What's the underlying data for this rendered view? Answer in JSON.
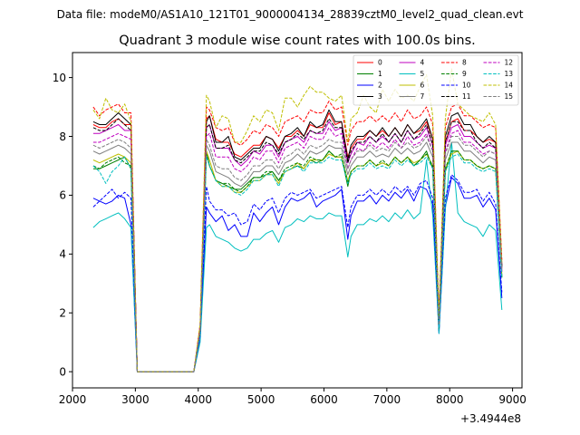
{
  "suptitle": "Data file: modeM0/AS1A10_121T01_9000004134_28839cztM0_level2_quad_clean.evt",
  "chart_data": {
    "type": "line",
    "title": "Quadrant 3 module wise count rates with 100.0s bins.",
    "xlabel": "",
    "ylabel": "",
    "offset_label": "+3.4944e8",
    "xlim": [
      2000,
      9150
    ],
    "ylim": [
      -0.55,
      10.85
    ],
    "xticks": [
      2000,
      3000,
      4000,
      5000,
      6000,
      7000,
      8000,
      9000
    ],
    "xtick_labels": [
      "2000",
      "3000",
      "4000",
      "5000",
      "6000",
      "7000",
      "8000",
      "9000"
    ],
    "yticks": [
      0,
      2,
      4,
      6,
      8,
      10
    ],
    "ytick_labels": [
      "0",
      "2",
      "4",
      "6",
      "8",
      "10"
    ],
    "grid": false,
    "legend_position": "top-right",
    "legend_columns": 4,
    "x": [
      2330,
      2430,
      2530,
      2630,
      2730,
      2830,
      2930,
      3030,
      3130,
      3230,
      3330,
      3430,
      3530,
      3630,
      3730,
      3830,
      3930,
      4030,
      4130,
      4180,
      4280,
      4380,
      4480,
      4580,
      4680,
      4780,
      4880,
      4980,
      5080,
      5180,
      5280,
      5380,
      5480,
      5580,
      5680,
      5780,
      5880,
      5980,
      6080,
      6180,
      6280,
      6380,
      6430,
      6530,
      6630,
      6730,
      6830,
      6930,
      7030,
      7130,
      7230,
      7330,
      7430,
      7530,
      7630,
      7730,
      7830,
      7930,
      8030,
      8130,
      8230,
      8330,
      8430,
      8530,
      8630,
      8730,
      8830
    ],
    "series": [
      {
        "name": "0",
        "color": "#ff0000",
        "dash": "solid",
        "values": [
          8.4,
          8.3,
          8.3,
          8.5,
          8.6,
          8.4,
          8.4,
          0,
          0,
          0,
          0,
          0,
          0,
          0,
          0,
          0,
          0,
          1.4,
          8.6,
          8.7,
          7.9,
          7.8,
          7.8,
          7.4,
          7.3,
          7.5,
          7.7,
          7.7,
          8.0,
          7.9,
          7.6,
          8.0,
          8.0,
          8.2,
          8.0,
          8.4,
          8.3,
          8.3,
          8.8,
          8.4,
          8.5,
          7.3,
          7.6,
          7.9,
          7.9,
          8.2,
          8.0,
          8.2,
          8.0,
          8.3,
          8.0,
          8.4,
          8.1,
          8.2,
          8.5,
          7.9,
          1.8,
          7.8,
          8.5,
          8.6,
          8.2,
          8.2,
          8.0,
          7.8,
          7.9,
          7.8,
          3.6
        ]
      },
      {
        "name": "1",
        "color": "#008000",
        "dash": "solid",
        "values": [
          6.9,
          6.9,
          7.0,
          7.1,
          7.2,
          7.3,
          6.9,
          0,
          0,
          0,
          0,
          0,
          0,
          0,
          0,
          0,
          0,
          1.3,
          7.5,
          7.0,
          6.5,
          6.4,
          6.3,
          6.2,
          6.2,
          6.4,
          6.6,
          6.6,
          6.7,
          6.8,
          6.5,
          6.8,
          6.9,
          7.0,
          6.9,
          7.2,
          7.1,
          7.2,
          7.5,
          7.3,
          7.3,
          6.3,
          6.8,
          7.0,
          7.0,
          7.2,
          7.0,
          7.1,
          7.0,
          7.3,
          7.1,
          7.3,
          7.0,
          7.2,
          7.5,
          6.9,
          1.4,
          6.8,
          7.5,
          7.5,
          7.2,
          7.2,
          7.0,
          6.9,
          7.0,
          6.9,
          3.2
        ]
      },
      {
        "name": "2",
        "color": "#0000ff",
        "dash": "solid",
        "values": [
          5.9,
          5.8,
          5.7,
          5.8,
          6.0,
          5.9,
          5.0,
          0,
          0,
          0,
          0,
          0,
          0,
          0,
          0,
          0,
          0,
          1.1,
          5.6,
          5.4,
          5.1,
          5.3,
          4.8,
          5.0,
          4.6,
          4.6,
          5.4,
          5.1,
          5.4,
          5.6,
          5.0,
          5.6,
          5.9,
          5.8,
          5.9,
          6.1,
          5.6,
          5.8,
          5.9,
          6.0,
          6.2,
          4.5,
          5.3,
          5.8,
          5.8,
          6.0,
          5.7,
          6.0,
          5.8,
          6.1,
          5.9,
          6.2,
          5.8,
          6.3,
          6.2,
          5.7,
          1.3,
          5.6,
          6.6,
          6.4,
          5.9,
          5.9,
          6.0,
          5.6,
          5.9,
          5.5,
          2.5
        ]
      },
      {
        "name": "3",
        "color": "#000000",
        "dash": "solid",
        "values": [
          8.5,
          8.4,
          8.4,
          8.6,
          8.8,
          8.6,
          8.4,
          0,
          0,
          0,
          0,
          0,
          0,
          0,
          0,
          0,
          0,
          1.5,
          8.5,
          8.7,
          7.8,
          7.8,
          8.0,
          7.3,
          7.2,
          7.4,
          7.6,
          7.6,
          8.0,
          7.9,
          7.5,
          8.0,
          8.1,
          8.3,
          8.0,
          8.5,
          8.3,
          8.4,
          8.9,
          8.5,
          8.5,
          7.2,
          7.7,
          8.0,
          8.0,
          8.2,
          8.0,
          8.3,
          8.0,
          8.3,
          8.0,
          8.4,
          8.1,
          8.3,
          8.6,
          7.9,
          1.8,
          8.0,
          8.7,
          8.8,
          8.4,
          8.4,
          8.0,
          7.8,
          8.0,
          7.8,
          3.6
        ]
      },
      {
        "name": "4",
        "color": "#bf00bf",
        "dash": "solid",
        "values": [
          8.1,
          8.1,
          8.2,
          8.3,
          8.4,
          8.2,
          8.2,
          0,
          0,
          0,
          0,
          0,
          0,
          0,
          0,
          0,
          0,
          1.4,
          8.3,
          8.4,
          7.6,
          7.6,
          7.6,
          7.2,
          7.0,
          7.2,
          7.5,
          7.4,
          7.7,
          7.7,
          7.3,
          7.8,
          7.9,
          8.0,
          7.8,
          8.2,
          8.1,
          8.1,
          8.5,
          8.2,
          8.3,
          7.1,
          7.4,
          7.8,
          7.7,
          8.0,
          7.8,
          8.0,
          7.8,
          8.1,
          7.8,
          8.2,
          7.9,
          8.0,
          8.3,
          7.7,
          1.7,
          7.7,
          8.3,
          8.4,
          8.0,
          8.0,
          7.8,
          7.6,
          7.7,
          7.6,
          3.5
        ]
      },
      {
        "name": "5",
        "color": "#00bfbf",
        "dash": "solid",
        "values": [
          4.9,
          5.1,
          5.2,
          5.3,
          5.4,
          5.2,
          4.9,
          0,
          0,
          0,
          0,
          0,
          0,
          0,
          0,
          0,
          0,
          1.0,
          4.9,
          5.0,
          4.6,
          4.5,
          4.4,
          4.2,
          4.1,
          4.2,
          4.5,
          4.5,
          4.7,
          4.8,
          4.4,
          4.9,
          5.0,
          5.2,
          5.1,
          5.3,
          5.2,
          5.2,
          5.4,
          5.3,
          5.3,
          3.9,
          4.6,
          5.0,
          5.0,
          5.2,
          5.1,
          5.3,
          5.1,
          5.4,
          5.2,
          5.5,
          5.2,
          5.4,
          7.2,
          5.3,
          1.3,
          5.5,
          7.8,
          5.4,
          5.1,
          5.0,
          4.9,
          4.6,
          5.0,
          4.8,
          2.1
        ]
      },
      {
        "name": "6",
        "color": "#bfbf00",
        "dash": "solid",
        "values": [
          7.2,
          7.1,
          7.2,
          7.3,
          7.4,
          7.3,
          7.1,
          0,
          0,
          0,
          0,
          0,
          0,
          0,
          0,
          0,
          0,
          1.3,
          7.5,
          7.2,
          6.5,
          6.3,
          6.3,
          6.1,
          6.1,
          6.3,
          6.5,
          6.5,
          6.7,
          6.7,
          6.4,
          6.8,
          6.9,
          7.1,
          6.9,
          7.2,
          7.2,
          7.2,
          7.4,
          7.3,
          7.3,
          6.5,
          6.8,
          7.0,
          7.0,
          7.2,
          7.0,
          7.1,
          7.0,
          7.3,
          7.1,
          7.3,
          7.1,
          7.2,
          7.4,
          7.0,
          1.5,
          6.9,
          7.4,
          7.5,
          7.2,
          7.2,
          7.0,
          6.9,
          7.0,
          6.9,
          3.3
        ]
      },
      {
        "name": "7",
        "color": "#7f7f7f",
        "dash": "solid",
        "values": [
          7.5,
          7.4,
          7.5,
          7.6,
          7.7,
          7.6,
          7.4,
          0,
          0,
          0,
          0,
          0,
          0,
          0,
          0,
          0,
          0,
          1.4,
          7.7,
          7.5,
          6.8,
          6.7,
          6.6,
          6.4,
          6.3,
          6.5,
          6.8,
          6.8,
          7.0,
          7.0,
          6.7,
          7.1,
          7.2,
          7.4,
          7.2,
          7.5,
          7.4,
          7.5,
          7.7,
          7.6,
          7.6,
          6.7,
          7.0,
          7.3,
          7.3,
          7.5,
          7.3,
          7.4,
          7.3,
          7.6,
          7.4,
          7.6,
          7.4,
          7.5,
          7.8,
          7.3,
          1.6,
          7.2,
          7.8,
          7.8,
          7.5,
          7.5,
          7.3,
          7.1,
          7.3,
          7.2,
          3.4
        ]
      },
      {
        "name": "8",
        "color": "#ff0000",
        "dash": "dashed",
        "values": [
          9.0,
          8.7,
          8.9,
          9.0,
          9.1,
          8.8,
          8.8,
          0,
          0,
          0,
          0,
          0,
          0,
          0,
          0,
          0,
          0,
          1.6,
          9.0,
          8.9,
          8.3,
          8.2,
          8.3,
          7.8,
          7.7,
          7.9,
          8.2,
          8.1,
          8.4,
          8.3,
          8.0,
          8.5,
          8.6,
          8.7,
          8.5,
          8.9,
          8.8,
          8.8,
          9.2,
          8.9,
          9.0,
          7.7,
          8.2,
          8.5,
          8.5,
          8.7,
          8.5,
          8.7,
          8.5,
          8.8,
          8.5,
          8.9,
          8.6,
          8.7,
          9.0,
          8.4,
          1.9,
          8.3,
          9.0,
          9.1,
          8.7,
          8.7,
          8.5,
          8.3,
          8.4,
          8.3,
          3.8
        ]
      },
      {
        "name": "9",
        "color": "#008000",
        "dash": "dashed",
        "values": [
          7.0,
          6.9,
          7.1,
          7.2,
          7.3,
          7.1,
          7.0,
          0,
          0,
          0,
          0,
          0,
          0,
          0,
          0,
          0,
          0,
          1.3,
          7.4,
          7.0,
          6.5,
          6.4,
          6.4,
          6.2,
          6.1,
          6.3,
          6.6,
          6.6,
          6.8,
          6.8,
          6.5,
          6.9,
          7.0,
          7.1,
          7.0,
          7.3,
          7.2,
          7.2,
          7.5,
          7.3,
          7.4,
          6.4,
          6.8,
          7.0,
          7.0,
          7.2,
          7.0,
          7.2,
          7.0,
          7.3,
          7.1,
          7.3,
          7.0,
          7.2,
          7.4,
          7.0,
          1.4,
          6.9,
          7.5,
          7.5,
          7.2,
          7.2,
          7.0,
          6.9,
          7.0,
          6.9,
          3.2
        ]
      },
      {
        "name": "10",
        "color": "#0000ff",
        "dash": "dashed",
        "values": [
          5.6,
          5.8,
          6.0,
          6.2,
          5.9,
          6.1,
          5.9,
          0,
          0,
          0,
          0,
          0,
          0,
          0,
          0,
          0,
          0,
          1.2,
          6.3,
          5.8,
          5.5,
          5.5,
          5.3,
          5.4,
          5.0,
          5.1,
          5.7,
          5.5,
          5.8,
          5.9,
          5.4,
          5.9,
          6.1,
          6.0,
          6.1,
          6.2,
          5.9,
          6.0,
          6.1,
          6.2,
          6.3,
          4.9,
          5.6,
          6.0,
          6.0,
          6.2,
          6.0,
          6.2,
          6.0,
          6.3,
          6.1,
          6.3,
          6.0,
          6.4,
          6.5,
          5.9,
          1.4,
          5.9,
          6.7,
          6.5,
          6.1,
          6.1,
          6.2,
          5.8,
          6.1,
          5.7,
          2.7
        ]
      },
      {
        "name": "11",
        "color": "#000000",
        "dash": "dashed",
        "values": [
          8.3,
          8.2,
          8.2,
          8.4,
          8.6,
          8.4,
          8.2,
          0,
          0,
          0,
          0,
          0,
          0,
          0,
          0,
          0,
          0,
          1.4,
          8.3,
          8.4,
          7.6,
          7.6,
          7.7,
          7.2,
          7.1,
          7.3,
          7.5,
          7.5,
          7.8,
          7.7,
          7.4,
          7.8,
          7.9,
          8.1,
          7.9,
          8.2,
          8.1,
          8.2,
          8.6,
          8.3,
          8.3,
          7.1,
          7.5,
          7.8,
          7.8,
          8.0,
          7.8,
          8.1,
          7.8,
          8.1,
          7.8,
          8.2,
          7.9,
          8.1,
          8.4,
          7.7,
          1.7,
          7.8,
          8.5,
          8.5,
          8.2,
          8.2,
          7.8,
          7.6,
          7.8,
          7.6,
          3.5
        ]
      },
      {
        "name": "12",
        "color": "#bf00bf",
        "dash": "dashed",
        "values": [
          7.8,
          7.8,
          7.9,
          8.0,
          8.1,
          8.0,
          7.9,
          0,
          0,
          0,
          0,
          0,
          0,
          0,
          0,
          0,
          0,
          1.4,
          8.0,
          8.1,
          7.3,
          7.3,
          7.3,
          6.9,
          6.8,
          7.0,
          7.3,
          7.2,
          7.5,
          7.5,
          7.1,
          7.6,
          7.7,
          7.8,
          7.6,
          8.0,
          7.9,
          7.9,
          8.3,
          8.0,
          8.1,
          6.9,
          7.2,
          7.6,
          7.5,
          7.8,
          7.6,
          7.8,
          7.6,
          7.9,
          7.6,
          8.0,
          7.7,
          7.8,
          8.1,
          7.5,
          1.6,
          7.5,
          8.1,
          8.2,
          7.8,
          7.8,
          7.6,
          7.4,
          7.5,
          7.4,
          3.4
        ]
      },
      {
        "name": "13",
        "color": "#00bfbf",
        "dash": "dashed",
        "values": [
          7.0,
          6.8,
          6.4,
          6.8,
          7.0,
          7.3,
          6.9,
          0,
          0,
          0,
          0,
          0,
          0,
          0,
          0,
          0,
          0,
          1.3,
          7.3,
          7.0,
          6.5,
          6.3,
          6.3,
          6.1,
          6.0,
          6.2,
          6.5,
          6.5,
          6.7,
          6.7,
          6.3,
          6.8,
          6.9,
          7.0,
          6.8,
          7.1,
          7.1,
          7.1,
          7.3,
          7.2,
          7.2,
          6.4,
          6.7,
          6.9,
          6.9,
          7.1,
          6.9,
          7.0,
          6.9,
          7.2,
          7.0,
          7.2,
          7.0,
          7.1,
          7.3,
          6.9,
          1.4,
          6.8,
          7.3,
          7.4,
          7.1,
          7.1,
          6.9,
          6.8,
          6.9,
          6.8,
          3.2
        ]
      },
      {
        "name": "14",
        "color": "#bfbf00",
        "dash": "dashed",
        "values": [
          8.9,
          8.6,
          9.3,
          8.9,
          8.8,
          9.1,
          8.5,
          0,
          0,
          0,
          0,
          0,
          0,
          0,
          0,
          0,
          0,
          1.6,
          9.4,
          9.2,
          8.3,
          8.7,
          8.6,
          7.8,
          7.8,
          8.2,
          8.7,
          8.5,
          8.9,
          8.8,
          8.2,
          9.3,
          9.3,
          9.0,
          9.4,
          9.7,
          9.5,
          9.5,
          9.3,
          9.2,
          9.4,
          7.8,
          8.6,
          8.8,
          9.4,
          9.0,
          8.8,
          9.6,
          9.2,
          9.6,
          9.3,
          9.4,
          9.2,
          9.7,
          10.1,
          8.7,
          1.9,
          8.6,
          10.3,
          9.1,
          8.9,
          8.7,
          8.6,
          8.5,
          8.8,
          8.4,
          3.7
        ]
      },
      {
        "name": "15",
        "color": "#7f7f7f",
        "dash": "dashed",
        "values": [
          7.7,
          7.6,
          7.7,
          7.8,
          7.9,
          7.8,
          7.6,
          0,
          0,
          0,
          0,
          0,
          0,
          0,
          0,
          0,
          0,
          1.4,
          7.9,
          7.7,
          7.0,
          6.9,
          6.9,
          6.6,
          6.5,
          6.7,
          7.0,
          7.0,
          7.2,
          7.2,
          6.9,
          7.3,
          7.4,
          7.6,
          7.4,
          7.7,
          7.6,
          7.7,
          7.9,
          7.8,
          7.8,
          6.9,
          7.2,
          7.5,
          7.5,
          7.7,
          7.5,
          7.6,
          7.5,
          7.8,
          7.6,
          7.8,
          7.6,
          7.7,
          8.0,
          7.5,
          1.6,
          7.4,
          8.0,
          8.0,
          7.7,
          7.7,
          7.5,
          7.3,
          7.5,
          7.4,
          3.5
        ]
      }
    ]
  }
}
